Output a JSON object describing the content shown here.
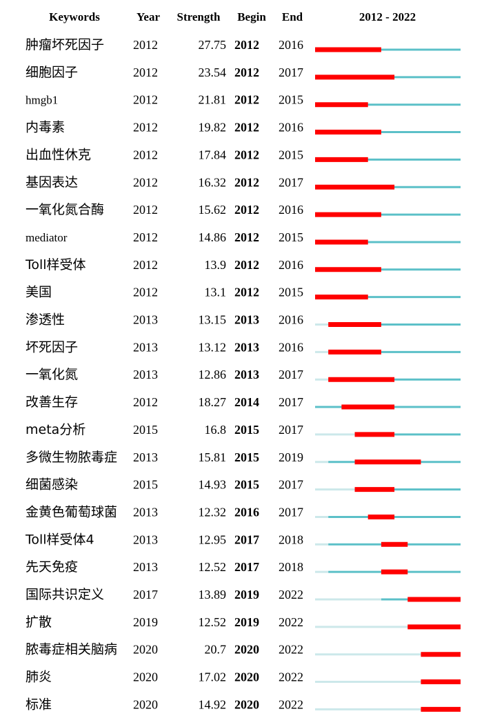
{
  "header": {
    "keywords": "Keywords",
    "year": "Year",
    "strength": "Strength",
    "begin": "Begin",
    "end": "End",
    "range": "2012 - 2022"
  },
  "colors": {
    "burst": "#ff0000",
    "active": "#5bc0c8",
    "inactive": "#cce8ea"
  },
  "chart_data": {
    "type": "table",
    "timeline": [
      2012,
      2022
    ],
    "rows": [
      {
        "keyword": "肿瘤坏死因子",
        "year": "2012",
        "strength": "27.75",
        "begin": "2012",
        "end": "2016"
      },
      {
        "keyword": "细胞因子",
        "year": "2012",
        "strength": "23.54",
        "begin": "2012",
        "end": "2017"
      },
      {
        "keyword": "hmgb1",
        "year": "2012",
        "strength": "21.81",
        "begin": "2012",
        "end": "2015"
      },
      {
        "keyword": "内毒素",
        "year": "2012",
        "strength": "19.82",
        "begin": "2012",
        "end": "2016"
      },
      {
        "keyword": "出血性休克",
        "year": "2012",
        "strength": "17.84",
        "begin": "2012",
        "end": "2015"
      },
      {
        "keyword": "基因表达",
        "year": "2012",
        "strength": "16.32",
        "begin": "2012",
        "end": "2017"
      },
      {
        "keyword": "一氧化氮合酶",
        "year": "2012",
        "strength": "15.62",
        "begin": "2012",
        "end": "2016"
      },
      {
        "keyword": "mediator",
        "year": "2012",
        "strength": "14.86",
        "begin": "2012",
        "end": "2015"
      },
      {
        "keyword": "Toll样受体",
        "year": "2012",
        "strength": "13.9",
        "begin": "2012",
        "end": "2016"
      },
      {
        "keyword": "美国",
        "year": "2012",
        "strength": "13.1",
        "begin": "2012",
        "end": "2015"
      },
      {
        "keyword": "渗透性",
        "year": "2013",
        "strength": "13.15",
        "begin": "2013",
        "end": "2016"
      },
      {
        "keyword": "坏死因子",
        "year": "2013",
        "strength": "13.12",
        "begin": "2013",
        "end": "2016"
      },
      {
        "keyword": "一氧化氮",
        "year": "2013",
        "strength": "12.86",
        "begin": "2013",
        "end": "2017"
      },
      {
        "keyword": "改善生存",
        "year": "2012",
        "strength": "18.27",
        "begin": "2014",
        "end": "2017"
      },
      {
        "keyword": "meta分析",
        "year": "2015",
        "strength": "16.8",
        "begin": "2015",
        "end": "2017"
      },
      {
        "keyword": "多微生物脓毒症",
        "year": "2013",
        "strength": "15.81",
        "begin": "2015",
        "end": "2019"
      },
      {
        "keyword": "细菌感染",
        "year": "2015",
        "strength": "14.93",
        "begin": "2015",
        "end": "2017"
      },
      {
        "keyword": "金黄色葡萄球菌",
        "year": "2013",
        "strength": "12.32",
        "begin": "2016",
        "end": "2017"
      },
      {
        "keyword": "Toll样受体4",
        "year": "2013",
        "strength": "12.95",
        "begin": "2017",
        "end": "2018"
      },
      {
        "keyword": "先天免疫",
        "year": "2013",
        "strength": "12.52",
        "begin": "2017",
        "end": "2018"
      },
      {
        "keyword": "国际共识定义",
        "year": "2017",
        "strength": "13.89",
        "begin": "2019",
        "end": "2022"
      },
      {
        "keyword": "扩散",
        "year": "2019",
        "strength": "12.52",
        "begin": "2019",
        "end": "2022"
      },
      {
        "keyword": "脓毒症相关脑病",
        "year": "2020",
        "strength": "20.7",
        "begin": "2020",
        "end": "2022"
      },
      {
        "keyword": "肺炎",
        "year": "2020",
        "strength": "17.02",
        "begin": "2020",
        "end": "2022"
      },
      {
        "keyword": "标准",
        "year": "2020",
        "strength": "14.92",
        "begin": "2020",
        "end": "2022"
      }
    ]
  }
}
